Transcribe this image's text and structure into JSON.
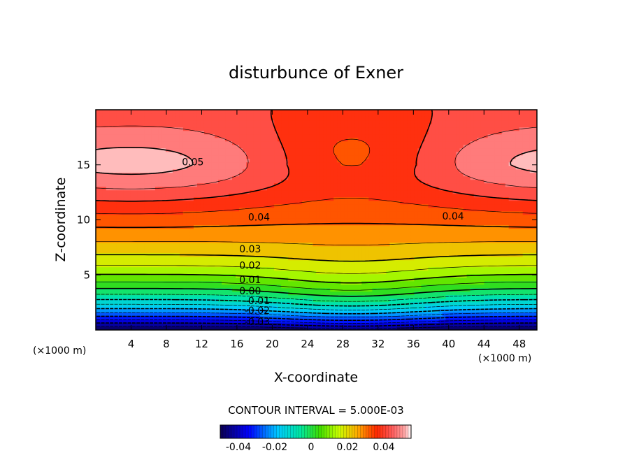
{
  "chart_data": {
    "type": "heatmap",
    "title": "disturbunce of Exner",
    "xlabel": "X-coordinate",
    "ylabel": "Z-coordinate",
    "x_unit": "(×1000 m)",
    "y_unit": "(×1000 m)",
    "xlim": [
      0,
      50
    ],
    "ylim": [
      0,
      20
    ],
    "x_ticks": [
      4,
      8,
      12,
      16,
      20,
      24,
      28,
      32,
      36,
      40,
      44,
      48
    ],
    "y_ticks": [
      5,
      10,
      15
    ],
    "contour_interval_text": "CONTOUR INTERVAL = 5.000E-03",
    "contour_interval": 0.005,
    "value_range": [
      -0.05,
      0.055
    ],
    "contour_labels": [
      {
        "text": "0.05",
        "x": 11,
        "z": 15.2
      },
      {
        "text": "0.04",
        "x": 18.5,
        "z": 10.2
      },
      {
        "text": "0.04",
        "x": 40.5,
        "z": 10.3
      },
      {
        "text": "0.03",
        "x": 17.5,
        "z": 7.3
      },
      {
        "text": "0.02",
        "x": 17.5,
        "z": 5.8
      },
      {
        "text": "0.01",
        "x": 17.5,
        "z": 4.5
      },
      {
        "text": "0.00",
        "x": 17.5,
        "z": 3.5
      },
      {
        "text": "-0.01",
        "x": 18.3,
        "z": 2.6
      },
      {
        "text": "-0.02",
        "x": 18.3,
        "z": 1.7
      },
      {
        "text": "-0.03",
        "x": 18.3,
        "z": 0.7
      }
    ],
    "colorbar": {
      "tick_labels": [
        "-0.04",
        "-0.02",
        "0",
        "0.02",
        "0.04"
      ],
      "tick_values": [
        -0.04,
        -0.02,
        0,
        0.02,
        0.04
      ],
      "range": [
        -0.05,
        0.055
      ]
    }
  }
}
